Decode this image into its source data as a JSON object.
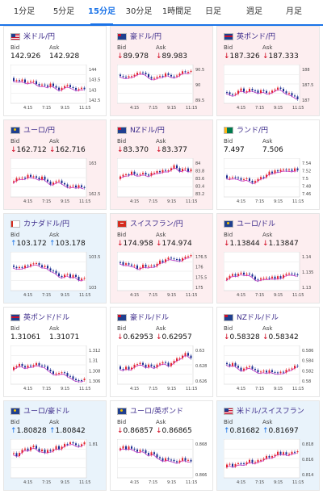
{
  "tabs": [
    {
      "label": "1分足",
      "active": false
    },
    {
      "label": "5分足",
      "active": false
    },
    {
      "label": "15分足",
      "active": true
    },
    {
      "label": "30分足",
      "active": false
    },
    {
      "label": "1時間足",
      "active": false
    },
    {
      "label": "日足",
      "active": false
    },
    {
      "label": "週足",
      "active": false
    },
    {
      "label": "月足",
      "active": false
    }
  ],
  "labels": {
    "bid": "Bid",
    "ask": "Ask"
  },
  "colors": {
    "accent": "#1a73e8",
    "down": "#d0021b",
    "up": "#1a73e8"
  },
  "cards": [
    {
      "pair": "米ドル/円",
      "flag": "us",
      "tone": "flat",
      "dir": "",
      "bid": "142.926",
      "ask": "142.928",
      "y_ticks": [
        "144",
        "143.5",
        "143",
        "142.5"
      ],
      "x_ticks": [
        "4:15",
        "7:15",
        "9:15",
        "11:15"
      ]
    },
    {
      "pair": "豪ドル/円",
      "flag": "au",
      "tone": "down",
      "dir": "↓",
      "bid": "89.978",
      "ask": "89.983",
      "y_ticks": [
        "90.5",
        "90",
        "89.5"
      ],
      "x_ticks": [
        "4:15",
        "7:15",
        "9:15",
        "11:15"
      ]
    },
    {
      "pair": "英ポンド/円",
      "flag": "gb",
      "tone": "down",
      "dir": "↓",
      "bid": "187.326",
      "ask": "187.333",
      "y_ticks": [
        "188",
        "187.5",
        "187"
      ],
      "x_ticks": [
        "4:15",
        "7:15",
        "9:15",
        "11:15"
      ]
    },
    {
      "pair": "ユーロ/円",
      "flag": "eu",
      "tone": "down",
      "dir": "↓",
      "bid": "162.712",
      "ask": "162.716",
      "y_ticks": [
        "163",
        "162.5"
      ],
      "x_ticks": [
        "4:15",
        "7:15",
        "9:15",
        "11:15"
      ]
    },
    {
      "pair": "NZドル/円",
      "flag": "nz",
      "tone": "down",
      "dir": "↓",
      "bid": "83.370",
      "ask": "83.377",
      "y_ticks": [
        "84",
        "83.8",
        "83.6",
        "83.4",
        "83.2"
      ],
      "x_ticks": [
        "4:15",
        "7:15",
        "9:15",
        "11:15"
      ]
    },
    {
      "pair": "ランド/円",
      "flag": "za",
      "tone": "flat",
      "dir": "",
      "bid": "7.497",
      "ask": "7.506",
      "y_ticks": [
        "7.54",
        "7.52",
        "7.5",
        "7.48",
        "7.46"
      ],
      "x_ticks": [
        "4:15",
        "7:15",
        "9:15",
        "11:15"
      ]
    },
    {
      "pair": "カナダドル/円",
      "flag": "ca",
      "tone": "up",
      "dir": "↑",
      "bid": "103.172",
      "ask": "103.178",
      "y_ticks": [
        "103.5",
        "103"
      ],
      "x_ticks": [
        "4:15",
        "7:15",
        "9:15",
        "11:15"
      ]
    },
    {
      "pair": "スイスフラン/円",
      "flag": "ch",
      "tone": "down",
      "dir": "↓",
      "bid": "174.958",
      "ask": "174.974",
      "y_ticks": [
        "176.5",
        "176",
        "175.5",
        "175"
      ],
      "x_ticks": [
        "4:15",
        "7:15",
        "9:15",
        "11:15"
      ]
    },
    {
      "pair": "ユーロ/ドル",
      "flag": "eu",
      "tone": "down",
      "dir": "↓",
      "bid": "1.13844",
      "ask": "1.13847",
      "y_ticks": [
        "1.14",
        "1.135",
        "1.13"
      ],
      "x_ticks": [
        "4:15",
        "7:15",
        "9:15",
        "11:15"
      ]
    },
    {
      "pair": "英ポンド/ドル",
      "flag": "gb",
      "tone": "flat",
      "dir": "",
      "bid": "1.31061",
      "ask": "1.31071",
      "y_ticks": [
        "1.312",
        "1.31",
        "1.308",
        "1.306"
      ],
      "x_ticks": [
        "4:15",
        "7:15",
        "9:15",
        "11:15"
      ]
    },
    {
      "pair": "豪ドル/ドル",
      "flag": "au",
      "tone": "flat",
      "dir": "↓",
      "bid": "0.62953",
      "ask": "0.62957",
      "y_ticks": [
        "0.63",
        "0.628",
        "0.626"
      ],
      "x_ticks": [
        "4:15",
        "7:15",
        "9:15",
        "11:15"
      ]
    },
    {
      "pair": "NZドル/ドル",
      "flag": "nz",
      "tone": "flat",
      "dir": "↓",
      "bid": "0.58328",
      "ask": "0.58342",
      "y_ticks": [
        "0.586",
        "0.584",
        "0.582",
        "0.58"
      ],
      "x_ticks": [
        "4:15",
        "7:15",
        "9:15",
        "11:15"
      ]
    },
    {
      "pair": "ユーロ/豪ドル",
      "flag": "eu",
      "tone": "up",
      "dir": "↑",
      "bid": "1.80828",
      "ask": "1.80842",
      "y_ticks": [
        "1.81"
      ],
      "x_ticks": [
        "4:15",
        "7:15",
        "9:15",
        "11:15"
      ]
    },
    {
      "pair": "ユーロ/英ポンド",
      "flag": "eu",
      "tone": "flat",
      "dir": "↓",
      "bid": "0.86857",
      "ask": "0.86865",
      "y_ticks": [
        "0.868",
        "0.866"
      ],
      "x_ticks": [
        "4:15",
        "7:15",
        "9:15",
        "11:15"
      ]
    },
    {
      "pair": "米ドル/スイスフラン",
      "flag": "us",
      "tone": "up",
      "dir": "↑",
      "bid": "0.81682",
      "ask": "0.81697",
      "y_ticks": [
        "0.818",
        "0.816",
        "0.814"
      ],
      "x_ticks": [
        "4:15",
        "7:15",
        "9:15",
        "11:15"
      ]
    }
  ]
}
